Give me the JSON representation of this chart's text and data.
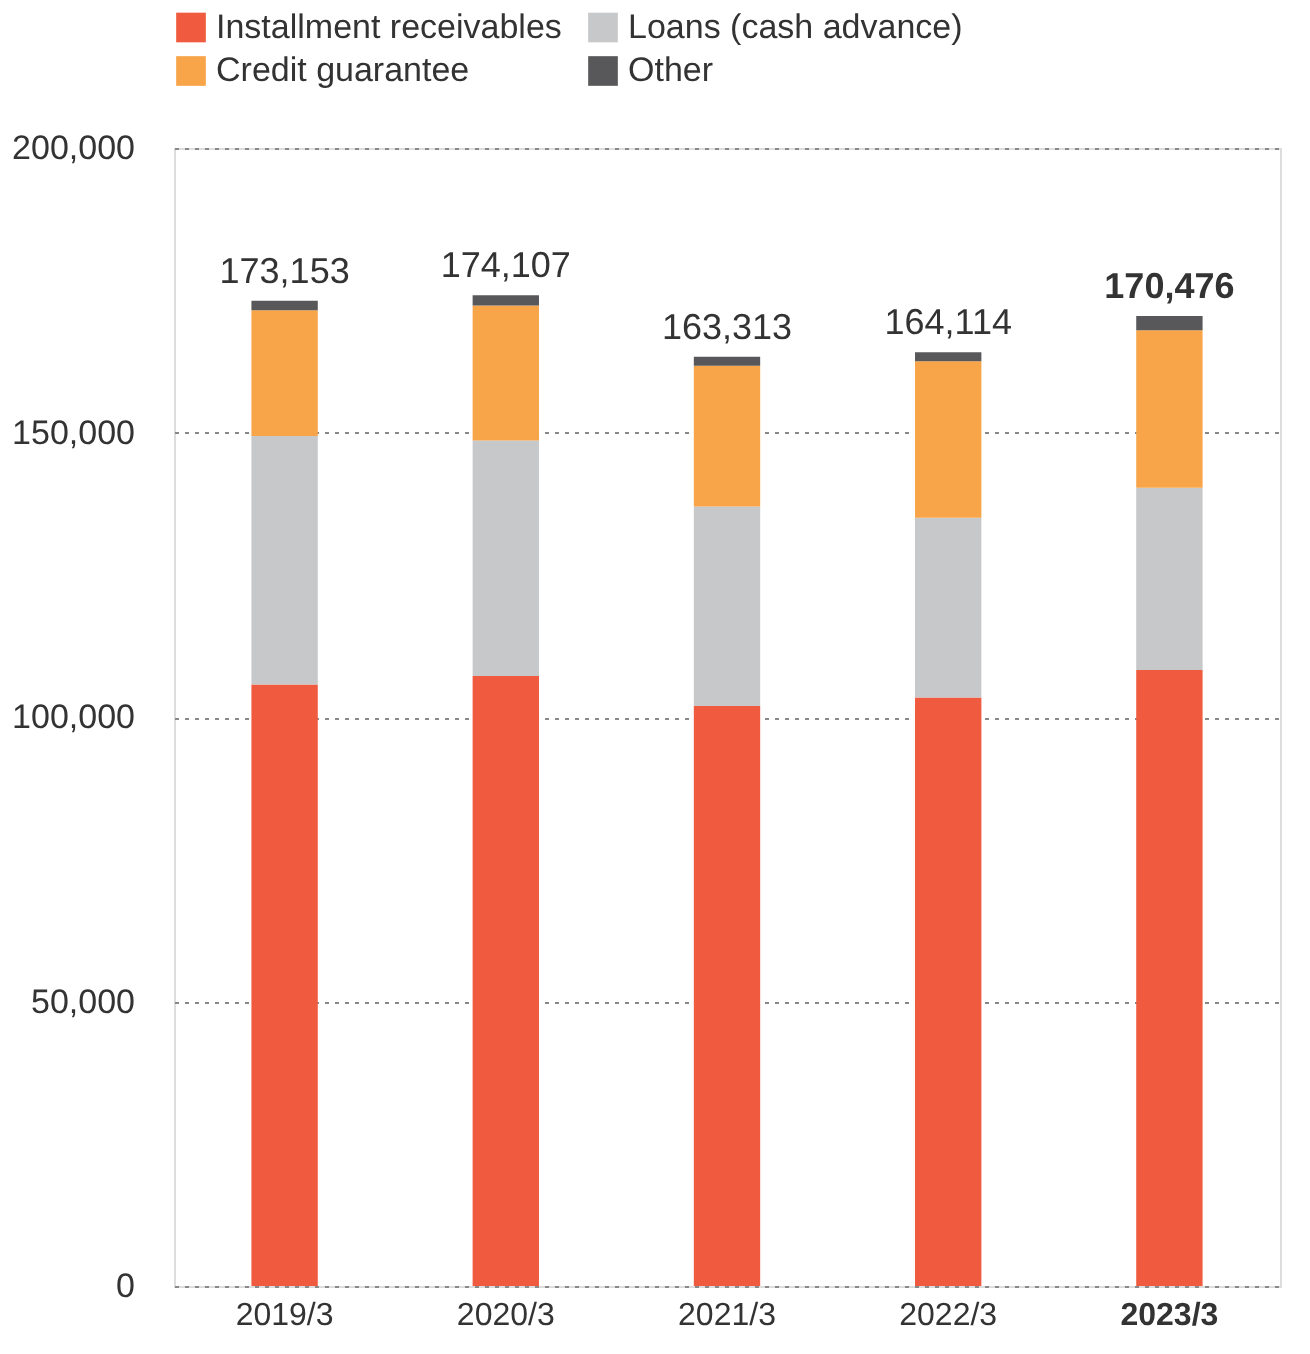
{
  "chart_data": {
    "type": "bar",
    "stacked": true,
    "categories": [
      "2019/3",
      "2020/3",
      "2021/3",
      "2022/3",
      "2023/3"
    ],
    "series": [
      {
        "name": "Installment receivables",
        "color": "#f05a3e",
        "values": [
          105703,
          107207,
          101913,
          103414,
          108276
        ]
      },
      {
        "name": "Loans (cash advance)",
        "color": "#c7c8ca",
        "values": [
          43700,
          41400,
          35100,
          31600,
          32000
        ]
      },
      {
        "name": "Credit guarantee",
        "color": "#f8a449",
        "values": [
          22100,
          23700,
          24700,
          27500,
          27700
        ]
      },
      {
        "name": "Other",
        "color": "#58585a",
        "values": [
          1650,
          1800,
          1600,
          1600,
          2500
        ]
      }
    ],
    "totals": [
      "173,153",
      "174,107",
      "163,313",
      "164,114",
      "170,476"
    ],
    "ylim": [
      0,
      200000
    ],
    "yticks": [
      0,
      {
        "value": 50000,
        "label": "50,000"
      },
      {
        "value": 100000,
        "label": "100,000"
      },
      {
        "value": 150000,
        "label": "150,000"
      },
      {
        "value": 200000,
        "label": "200,000"
      }
    ],
    "grid": "y",
    "legend": "top"
  }
}
